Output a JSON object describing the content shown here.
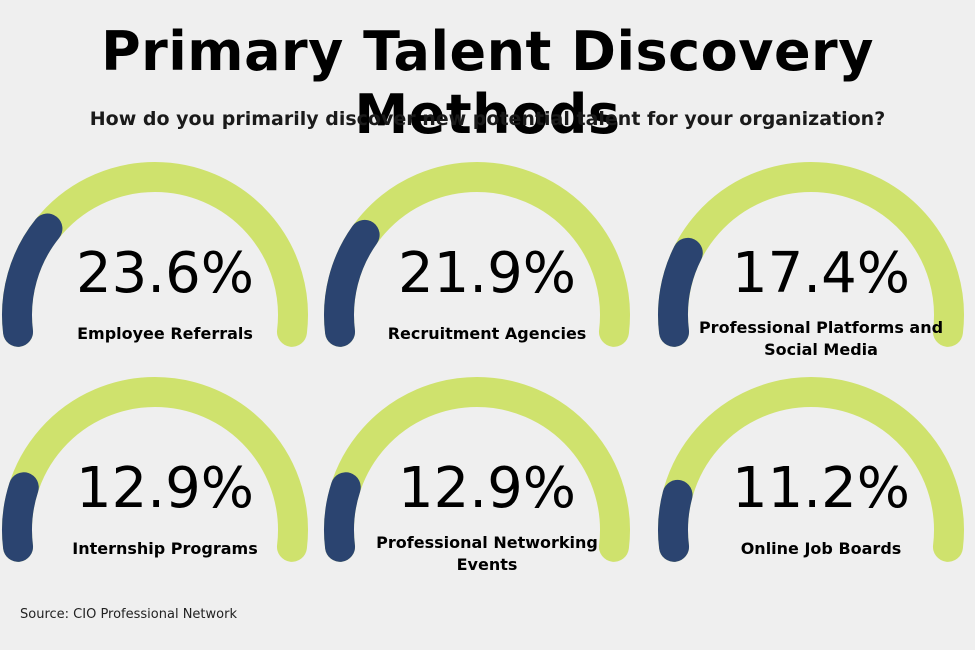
{
  "title": "Primary Talent Discovery Methods",
  "subtitle": "How do you primarily discover new potential talent for your organization?",
  "source": "Source: CIO Professional Network",
  "colors": {
    "track": "#cfe26d",
    "fill": "#2b4470",
    "background": "#efefef"
  },
  "chart_data": {
    "type": "gauge",
    "max": 100,
    "items": [
      {
        "label": "Employee Referrals",
        "value": 23.6,
        "display": "23.6%"
      },
      {
        "label": "Recruitment Agencies",
        "value": 21.9,
        "display": "21.9%"
      },
      {
        "label": "Professional Platforms and Social Media",
        "value": 17.4,
        "display": "17.4%"
      },
      {
        "label": "Internship Programs",
        "value": 12.9,
        "display": "12.9%"
      },
      {
        "label": "Professional Networking Events",
        "value": 12.9,
        "display": "12.9%"
      },
      {
        "label": "Online Job Boards",
        "value": 11.2,
        "display": "11.2%"
      }
    ]
  }
}
